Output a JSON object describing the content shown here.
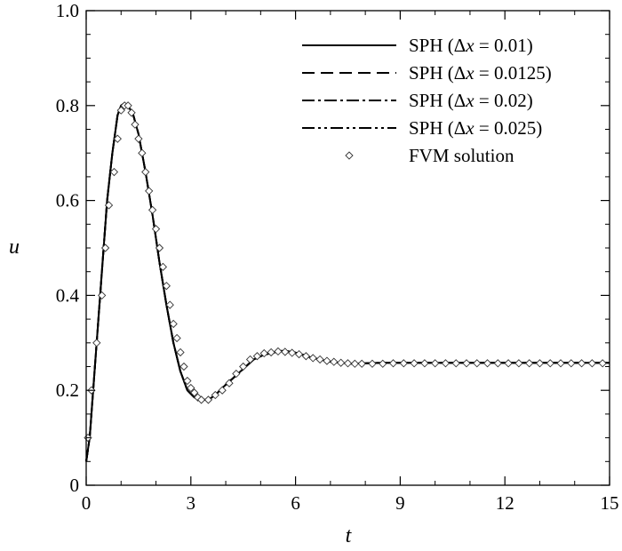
{
  "chart_data": {
    "type": "line",
    "xlabel": "t",
    "ylabel": "u",
    "xlim": [
      0,
      15
    ],
    "ylim": [
      0,
      1.0
    ],
    "xticks": [
      0,
      3,
      6,
      9,
      12,
      15
    ],
    "yticks": [
      0,
      0.2,
      0.4,
      0.6,
      0.8,
      1.0
    ],
    "xtick_labels": [
      "0",
      "3",
      "6",
      "9",
      "12",
      "15"
    ],
    "ytick_labels": [
      "0",
      "0.2",
      "0.4",
      "0.6",
      "0.8",
      "1.0"
    ],
    "grid": false,
    "legend_position": "top-right",
    "series": [
      {
        "name": "SPH (Δx = 0.01)",
        "label_parts": [
          "SPH (Δ",
          "x",
          " = 0.01)"
        ],
        "style": "solid",
        "x": [
          0,
          0.1,
          0.2,
          0.3,
          0.45,
          0.6,
          0.75,
          0.9,
          1.0,
          1.1,
          1.2,
          1.35,
          1.5,
          1.7,
          1.9,
          2.1,
          2.3,
          2.5,
          2.7,
          2.9,
          3.1,
          3.3,
          3.5,
          3.7,
          3.9,
          4.2,
          4.5,
          4.8,
          5.1,
          5.4,
          5.6,
          5.8,
          6.1,
          6.4,
          6.7,
          7.0,
          7.3,
          7.6,
          8.0,
          8.5,
          9,
          10,
          11,
          12,
          13,
          14,
          15
        ],
        "y": [
          0.05,
          0.1,
          0.2,
          0.3,
          0.45,
          0.6,
          0.7,
          0.78,
          0.8,
          0.805,
          0.8,
          0.78,
          0.74,
          0.66,
          0.57,
          0.47,
          0.38,
          0.3,
          0.24,
          0.2,
          0.185,
          0.18,
          0.18,
          0.19,
          0.205,
          0.225,
          0.245,
          0.265,
          0.275,
          0.28,
          0.283,
          0.282,
          0.278,
          0.27,
          0.265,
          0.26,
          0.258,
          0.256,
          0.257,
          0.258,
          0.258,
          0.258,
          0.258,
          0.258,
          0.258,
          0.258,
          0.258
        ]
      },
      {
        "name": "SPH (Δx = 0.0125)",
        "label_parts": [
          "SPH (Δ",
          "x",
          " = 0.0125)"
        ],
        "style": "dashed",
        "x": [
          0,
          0.1,
          0.2,
          0.3,
          0.45,
          0.6,
          0.75,
          0.9,
          1.0,
          1.1,
          1.2,
          1.35,
          1.5,
          1.7,
          1.9,
          2.1,
          2.3,
          2.5,
          2.7,
          2.9,
          3.1,
          3.3,
          3.5,
          3.7,
          3.9,
          4.2,
          4.5,
          4.8,
          5.1,
          5.4,
          5.6,
          5.8,
          6.1,
          6.4,
          6.7,
          7.0,
          7.3,
          7.6,
          8.0,
          8.5,
          9,
          10,
          11,
          12,
          13,
          14,
          15
        ],
        "y": [
          0.05,
          0.1,
          0.2,
          0.3,
          0.45,
          0.6,
          0.7,
          0.78,
          0.8,
          0.805,
          0.8,
          0.78,
          0.74,
          0.66,
          0.57,
          0.47,
          0.38,
          0.3,
          0.24,
          0.2,
          0.185,
          0.18,
          0.18,
          0.19,
          0.205,
          0.225,
          0.245,
          0.265,
          0.275,
          0.28,
          0.283,
          0.282,
          0.278,
          0.27,
          0.265,
          0.26,
          0.258,
          0.256,
          0.257,
          0.258,
          0.258,
          0.258,
          0.258,
          0.258,
          0.258,
          0.258,
          0.258
        ]
      },
      {
        "name": "SPH (Δx = 0.02)",
        "label_parts": [
          "SPH (Δ",
          "x",
          " = 0.02)"
        ],
        "style": "dashdot",
        "x": [
          0,
          0.1,
          0.2,
          0.3,
          0.45,
          0.6,
          0.75,
          0.9,
          1.0,
          1.1,
          1.2,
          1.35,
          1.5,
          1.7,
          1.9,
          2.1,
          2.3,
          2.5,
          2.7,
          2.9,
          3.1,
          3.3,
          3.5,
          3.7,
          3.9,
          4.2,
          4.5,
          4.8,
          5.1,
          5.4,
          5.6,
          5.8,
          6.1,
          6.4,
          6.7,
          7.0,
          7.3,
          7.6,
          8.0,
          8.5,
          9,
          10,
          11,
          12,
          13,
          14,
          15
        ],
        "y": [
          0.05,
          0.1,
          0.2,
          0.3,
          0.45,
          0.6,
          0.7,
          0.78,
          0.8,
          0.805,
          0.8,
          0.78,
          0.74,
          0.66,
          0.57,
          0.47,
          0.38,
          0.3,
          0.24,
          0.2,
          0.185,
          0.18,
          0.18,
          0.19,
          0.205,
          0.225,
          0.245,
          0.265,
          0.275,
          0.28,
          0.283,
          0.282,
          0.278,
          0.27,
          0.265,
          0.26,
          0.258,
          0.256,
          0.257,
          0.258,
          0.258,
          0.258,
          0.258,
          0.258,
          0.258,
          0.258,
          0.258
        ]
      },
      {
        "name": "SPH (Δx = 0.025)",
        "label_parts": [
          "SPH (Δ",
          "x",
          " = 0.025)"
        ],
        "style": "dashdotdot",
        "x": [
          0,
          0.1,
          0.2,
          0.3,
          0.45,
          0.6,
          0.75,
          0.9,
          1.0,
          1.1,
          1.2,
          1.35,
          1.5,
          1.7,
          1.9,
          2.1,
          2.3,
          2.5,
          2.7,
          2.9,
          3.1,
          3.3,
          3.5,
          3.7,
          3.9,
          4.2,
          4.5,
          4.8,
          5.1,
          5.4,
          5.6,
          5.8,
          6.1,
          6.4,
          6.7,
          7.0,
          7.3,
          7.6,
          8.0,
          8.5,
          9,
          10,
          11,
          12,
          13,
          14,
          15
        ],
        "y": [
          0.05,
          0.1,
          0.2,
          0.3,
          0.45,
          0.6,
          0.7,
          0.78,
          0.8,
          0.805,
          0.8,
          0.78,
          0.74,
          0.66,
          0.57,
          0.47,
          0.38,
          0.3,
          0.24,
          0.2,
          0.185,
          0.18,
          0.18,
          0.19,
          0.205,
          0.225,
          0.245,
          0.265,
          0.275,
          0.28,
          0.283,
          0.282,
          0.278,
          0.27,
          0.265,
          0.26,
          0.258,
          0.256,
          0.257,
          0.258,
          0.258,
          0.258,
          0.258,
          0.258,
          0.258,
          0.258,
          0.258
        ]
      },
      {
        "name": "FVM solution",
        "label_parts": [
          "FVM solution"
        ],
        "style": "markers",
        "x": [
          0.05,
          0.15,
          0.3,
          0.45,
          0.55,
          0.65,
          0.8,
          0.9,
          1.0,
          1.1,
          1.2,
          1.3,
          1.4,
          1.5,
          1.6,
          1.7,
          1.8,
          1.9,
          2.0,
          2.1,
          2.2,
          2.3,
          2.4,
          2.5,
          2.6,
          2.7,
          2.8,
          2.9,
          3.0,
          3.1,
          3.2,
          3.3,
          3.5,
          3.7,
          3.9,
          4.1,
          4.3,
          4.5,
          4.7,
          4.9,
          5.1,
          5.3,
          5.5,
          5.7,
          5.9,
          6.1,
          6.3,
          6.5,
          6.7,
          6.9,
          7.1,
          7.3,
          7.5,
          7.7,
          7.9,
          8.2,
          8.5,
          8.8,
          9.1,
          9.4,
          9.7,
          10.0,
          10.3,
          10.6,
          10.9,
          11.2,
          11.5,
          11.8,
          12.1,
          12.4,
          12.7,
          13.0,
          13.3,
          13.6,
          13.9,
          14.2,
          14.5,
          14.8
        ],
        "y": [
          0.1,
          0.2,
          0.3,
          0.4,
          0.5,
          0.59,
          0.66,
          0.73,
          0.79,
          0.8,
          0.8,
          0.785,
          0.76,
          0.73,
          0.7,
          0.66,
          0.62,
          0.58,
          0.54,
          0.5,
          0.46,
          0.42,
          0.38,
          0.34,
          0.31,
          0.28,
          0.25,
          0.22,
          0.205,
          0.195,
          0.185,
          0.18,
          0.18,
          0.19,
          0.2,
          0.215,
          0.235,
          0.25,
          0.265,
          0.272,
          0.278,
          0.28,
          0.282,
          0.281,
          0.279,
          0.276,
          0.272,
          0.268,
          0.265,
          0.262,
          0.26,
          0.258,
          0.257,
          0.256,
          0.256,
          0.256,
          0.256,
          0.257,
          0.257,
          0.257,
          0.257,
          0.257,
          0.257,
          0.257,
          0.257,
          0.257,
          0.257,
          0.257,
          0.257,
          0.257,
          0.257,
          0.257,
          0.257,
          0.257,
          0.257,
          0.257,
          0.257,
          0.257
        ]
      }
    ]
  }
}
